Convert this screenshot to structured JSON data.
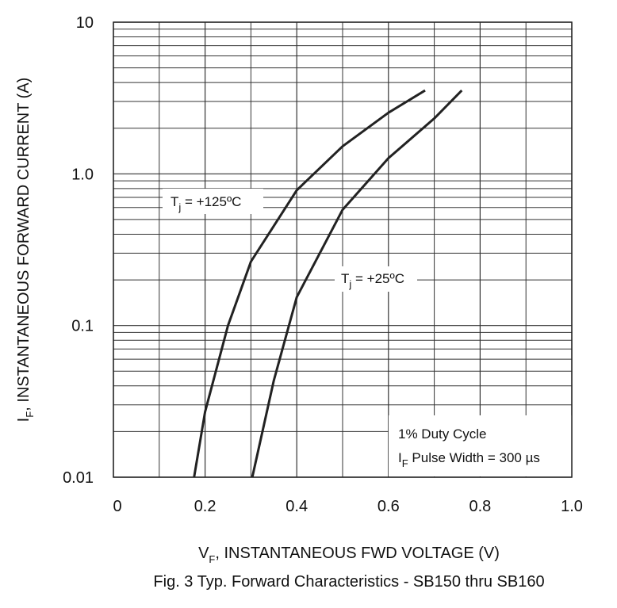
{
  "chart_data": {
    "type": "line",
    "title": "Fig. 3  Typ. Forward Characteristics - SB150 thru SB160",
    "x_label": {
      "text": "V",
      "sub": "F",
      "tail": ", INSTANTANEOUS FWD VOLTAGE (V)"
    },
    "y_label": {
      "text": "I",
      "sub": "F",
      "tail": ", INSTANTANEOUS FORWARD CURRENT (A)"
    },
    "log_y": true,
    "grid": true,
    "color": "#222222",
    "xlim": [
      0,
      1.0
    ],
    "ylim": [
      0.01,
      10
    ],
    "xticks": [
      0,
      0.2,
      0.4,
      0.6,
      0.8,
      {
        "value": 1,
        "label": "1.0"
      }
    ],
    "xminorticks": [
      0.1,
      0.3,
      0.5,
      0.7,
      0.9
    ],
    "yticks": [
      0.01,
      0.1,
      {
        "value": 1,
        "label": "1.0"
      },
      10
    ],
    "yminorticks": [
      0.02,
      0.03,
      0.04,
      0.05,
      0.06,
      0.07,
      0.08,
      0.09,
      0.2,
      0.3,
      0.4,
      0.5,
      0.6,
      0.7,
      0.8,
      0.9,
      2,
      3,
      4,
      5,
      6,
      7,
      8,
      9
    ],
    "series": [
      {
        "label": {
          "text": "T",
          "sub": "j",
          "tail": " = +125ºC"
        },
        "color": "#222222",
        "x": [
          0.176,
          0.2,
          0.25,
          0.3,
          0.4,
          0.5,
          0.6,
          0.68
        ],
        "values": [
          0.01,
          0.027,
          0.1,
          0.264,
          0.78,
          1.52,
          2.53,
          3.55
        ]
      },
      {
        "label": {
          "text": "T",
          "sub": "j",
          "tail": " = +25ºC"
        },
        "color": "#222222",
        "x": [
          0.303,
          0.35,
          0.4,
          0.5,
          0.6,
          0.7,
          0.76
        ],
        "values": [
          0.01,
          0.0435,
          0.154,
          0.58,
          1.27,
          2.32,
          3.55
        ]
      }
    ],
    "annotation": {
      "line1": "1% Duty Cycle",
      "line2": {
        "text": "I",
        "sub": "F",
        "tail": " Pulse Width = 300 µs"
      }
    }
  }
}
